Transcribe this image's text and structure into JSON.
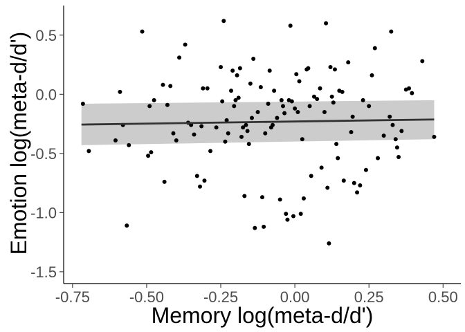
{
  "chart_data": {
    "type": "scatter",
    "title": "",
    "xlabel": "Memory log(meta-d/d')",
    "ylabel": "Emotion log(meta-d/d')",
    "xlim": [
      -0.78,
      0.56
    ],
    "ylim": [
      -1.6,
      0.75
    ],
    "x_ticks": [
      -0.75,
      -0.5,
      -0.25,
      0.0,
      0.25,
      0.5
    ],
    "x_tick_labels": [
      "-0.75",
      "-0.50",
      "-0.25",
      "0.00",
      "0.25",
      "0.50"
    ],
    "y_ticks": [
      0.5,
      0.0,
      -0.5,
      -1.0,
      -1.5
    ],
    "y_tick_labels": [
      "0.5",
      "0.0",
      "-0.5",
      "-1.0",
      "-1.5"
    ],
    "grid": false,
    "colors": {
      "points": "#000000",
      "line": "#333333",
      "band": "#cccccc",
      "axis": "#000000"
    },
    "fit": {
      "method": "linear",
      "x": [
        -0.72,
        0.47
      ],
      "y": [
        -0.256,
        -0.213
      ],
      "ci_lower": [
        -0.43,
        -0.38
      ],
      "ci_upper": [
        -0.08,
        -0.05
      ]
    },
    "points": [
      {
        "x": -0.715,
        "y": -0.08
      },
      {
        "x": -0.695,
        "y": -0.48
      },
      {
        "x": -0.605,
        "y": -0.39
      },
      {
        "x": -0.59,
        "y": 0.02
      },
      {
        "x": -0.58,
        "y": -0.26
      },
      {
        "x": -0.567,
        "y": -1.11
      },
      {
        "x": -0.56,
        "y": -0.43
      },
      {
        "x": -0.515,
        "y": 0.53
      },
      {
        "x": -0.495,
        "y": -0.52
      },
      {
        "x": -0.49,
        "y": -0.1
      },
      {
        "x": -0.485,
        "y": -0.49
      },
      {
        "x": -0.475,
        "y": -0.05
      },
      {
        "x": -0.445,
        "y": 0.08
      },
      {
        "x": -0.44,
        "y": -0.74
      },
      {
        "x": -0.43,
        "y": -0.09
      },
      {
        "x": -0.42,
        "y": 0.07
      },
      {
        "x": -0.41,
        "y": -0.33
      },
      {
        "x": -0.4,
        "y": -0.39
      },
      {
        "x": -0.39,
        "y": 0.31
      },
      {
        "x": -0.37,
        "y": 0.42
      },
      {
        "x": -0.36,
        "y": -0.24
      },
      {
        "x": -0.35,
        "y": -0.26
      },
      {
        "x": -0.34,
        "y": -0.34
      },
      {
        "x": -0.33,
        "y": -0.69
      },
      {
        "x": -0.32,
        "y": -0.78
      },
      {
        "x": -0.315,
        "y": -0.27
      },
      {
        "x": -0.31,
        "y": 0.05
      },
      {
        "x": -0.305,
        "y": -0.73
      },
      {
        "x": -0.295,
        "y": 0.05
      },
      {
        "x": -0.285,
        "y": -0.48
      },
      {
        "x": -0.265,
        "y": -0.28
      },
      {
        "x": -0.25,
        "y": 0.23
      },
      {
        "x": -0.245,
        "y": -0.06
      },
      {
        "x": -0.24,
        "y": 0.62
      },
      {
        "x": -0.235,
        "y": -0.4
      },
      {
        "x": -0.23,
        "y": -0.22
      },
      {
        "x": -0.225,
        "y": -0.33
      },
      {
        "x": -0.215,
        "y": 0.03
      },
      {
        "x": -0.21,
        "y": 0.2
      },
      {
        "x": -0.205,
        "y": -0.1
      },
      {
        "x": -0.2,
        "y": -0.05
      },
      {
        "x": -0.195,
        "y": 0.16
      },
      {
        "x": -0.19,
        "y": -0.03
      },
      {
        "x": -0.185,
        "y": 0.22
      },
      {
        "x": -0.18,
        "y": -0.36
      },
      {
        "x": -0.175,
        "y": -0.28
      },
      {
        "x": -0.17,
        "y": -0.86
      },
      {
        "x": -0.165,
        "y": -0.26
      },
      {
        "x": -0.16,
        "y": -0.31
      },
      {
        "x": -0.155,
        "y": -0.42
      },
      {
        "x": -0.15,
        "y": 0.09
      },
      {
        "x": -0.145,
        "y": -0.2
      },
      {
        "x": -0.14,
        "y": 0.3
      },
      {
        "x": -0.135,
        "y": -1.13
      },
      {
        "x": -0.125,
        "y": -0.15
      },
      {
        "x": -0.115,
        "y": 0.06
      },
      {
        "x": -0.11,
        "y": -0.87
      },
      {
        "x": -0.105,
        "y": -1.12
      },
      {
        "x": -0.1,
        "y": -0.33
      },
      {
        "x": -0.09,
        "y": -0.08
      },
      {
        "x": -0.085,
        "y": 0.2
      },
      {
        "x": -0.08,
        "y": -0.28
      },
      {
        "x": -0.075,
        "y": -0.26
      },
      {
        "x": -0.07,
        "y": 0.03
      },
      {
        "x": -0.06,
        "y": -0.2
      },
      {
        "x": -0.05,
        "y": -0.89
      },
      {
        "x": -0.045,
        "y": -0.05
      },
      {
        "x": -0.04,
        "y": -0.1
      },
      {
        "x": -0.035,
        "y": -0.16
      },
      {
        "x": -0.03,
        "y": -1.01
      },
      {
        "x": -0.025,
        "y": -1.06
      },
      {
        "x": -0.02,
        "y": -0.05
      },
      {
        "x": -0.015,
        "y": 0.58
      },
      {
        "x": -0.01,
        "y": -0.06
      },
      {
        "x": -0.005,
        "y": -1.03
      },
      {
        "x": 0.0,
        "y": -0.12
      },
      {
        "x": 0.005,
        "y": 0.17
      },
      {
        "x": 0.01,
        "y": -0.15
      },
      {
        "x": 0.015,
        "y": 0.11
      },
      {
        "x": 0.02,
        "y": -1.01
      },
      {
        "x": 0.025,
        "y": -0.38
      },
      {
        "x": 0.03,
        "y": -0.88
      },
      {
        "x": 0.04,
        "y": 0.21
      },
      {
        "x": 0.045,
        "y": 0.22
      },
      {
        "x": 0.05,
        "y": -0.1
      },
      {
        "x": 0.055,
        "y": -0.69
      },
      {
        "x": 0.065,
        "y": -0.02
      },
      {
        "x": 0.075,
        "y": -0.04
      },
      {
        "x": 0.085,
        "y": 0.05
      },
      {
        "x": 0.09,
        "y": -0.62
      },
      {
        "x": 0.1,
        "y": -0.15
      },
      {
        "x": 0.105,
        "y": 0.6
      },
      {
        "x": 0.11,
        "y": -0.79
      },
      {
        "x": 0.115,
        "y": -1.26
      },
      {
        "x": 0.12,
        "y": 0.23
      },
      {
        "x": 0.125,
        "y": -0.02
      },
      {
        "x": 0.13,
        "y": -0.07
      },
      {
        "x": 0.135,
        "y": 0.21
      },
      {
        "x": 0.14,
        "y": -0.42
      },
      {
        "x": 0.145,
        "y": -0.54
      },
      {
        "x": 0.15,
        "y": 0.03
      },
      {
        "x": 0.16,
        "y": 0.02
      },
      {
        "x": 0.165,
        "y": -0.73
      },
      {
        "x": 0.18,
        "y": 0.27
      },
      {
        "x": 0.19,
        "y": -0.32
      },
      {
        "x": 0.195,
        "y": -0.19
      },
      {
        "x": 0.2,
        "y": -0.75
      },
      {
        "x": 0.21,
        "y": -0.83
      },
      {
        "x": 0.22,
        "y": -0.77
      },
      {
        "x": 0.23,
        "y": -0.05
      },
      {
        "x": 0.24,
        "y": -0.64
      },
      {
        "x": 0.25,
        "y": -0.1
      },
      {
        "x": 0.26,
        "y": 0.16
      },
      {
        "x": 0.27,
        "y": 0.39
      },
      {
        "x": 0.28,
        "y": -0.54
      },
      {
        "x": 0.3,
        "y": -0.35
      },
      {
        "x": 0.32,
        "y": -0.19
      },
      {
        "x": 0.325,
        "y": 0.53
      },
      {
        "x": 0.33,
        "y": -0.26
      },
      {
        "x": 0.34,
        "y": -0.38
      },
      {
        "x": 0.345,
        "y": -0.45
      },
      {
        "x": 0.35,
        "y": -0.53
      },
      {
        "x": 0.36,
        "y": -0.31
      },
      {
        "x": 0.375,
        "y": 0.04
      },
      {
        "x": 0.385,
        "y": 0.05
      },
      {
        "x": 0.395,
        "y": 0.01
      },
      {
        "x": 0.43,
        "y": 0.28
      },
      {
        "x": 0.47,
        "y": -0.36
      }
    ]
  }
}
